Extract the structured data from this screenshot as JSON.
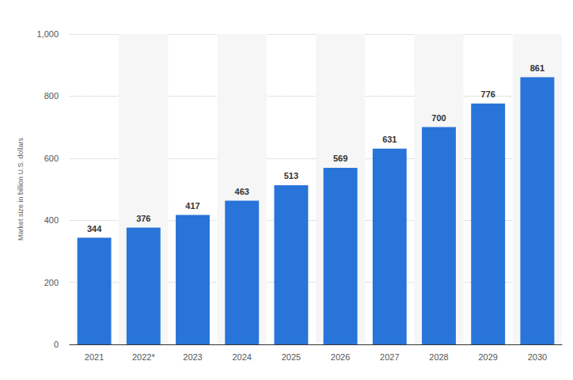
{
  "chart_data": {
    "type": "bar",
    "y_label": "Market size in billion U.S. dollars",
    "categories": [
      "2021",
      "2022*",
      "2023",
      "2024",
      "2025",
      "2026",
      "2027",
      "2028",
      "2029",
      "2030"
    ],
    "values": [
      344,
      376,
      417,
      463,
      513,
      569,
      631,
      700,
      776,
      861
    ],
    "color": "#2874d9",
    "ylim": [
      0,
      1000
    ],
    "yticks": [
      0,
      200,
      400,
      600,
      800,
      {
        "value": 1000,
        "label": "1,000"
      }
    ],
    "grid": true,
    "data_labels": true
  }
}
